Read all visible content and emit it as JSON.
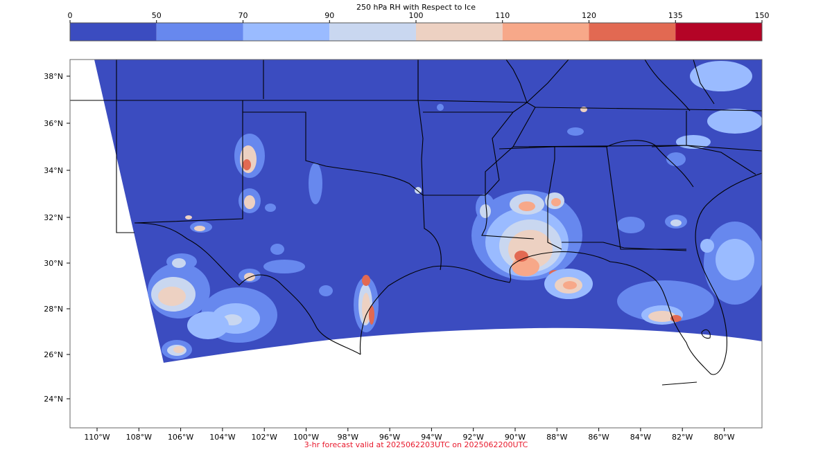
{
  "colorbar": {
    "title": "250 hPa RH with Respect to Ice",
    "ticks": [
      "0",
      "50",
      "70",
      "90",
      "100",
      "110",
      "120",
      "135",
      "150"
    ],
    "colors": [
      "#3b4cc0",
      "#6788ee",
      "#9abbff",
      "#c9d7f0",
      "#edd1c2",
      "#f7a889",
      "#e26952",
      "#b40426"
    ]
  },
  "map": {
    "lat_labels": [
      "38°N",
      "36°N",
      "34°N",
      "32°N",
      "30°N",
      "28°N",
      "26°N",
      "24°N"
    ],
    "lon_labels": [
      "110°W",
      "108°W",
      "106°W",
      "104°W",
      "102°W",
      "100°W",
      "98°W",
      "96°W",
      "94°W",
      "92°W",
      "90°W",
      "88°W",
      "86°W",
      "84°W",
      "82°W",
      "80°W"
    ],
    "base_color": "#3b4cc0",
    "border_color": "#000000"
  },
  "footer": "3-hr forecast valid at 2025062203UTC on 2025062200UTC"
}
